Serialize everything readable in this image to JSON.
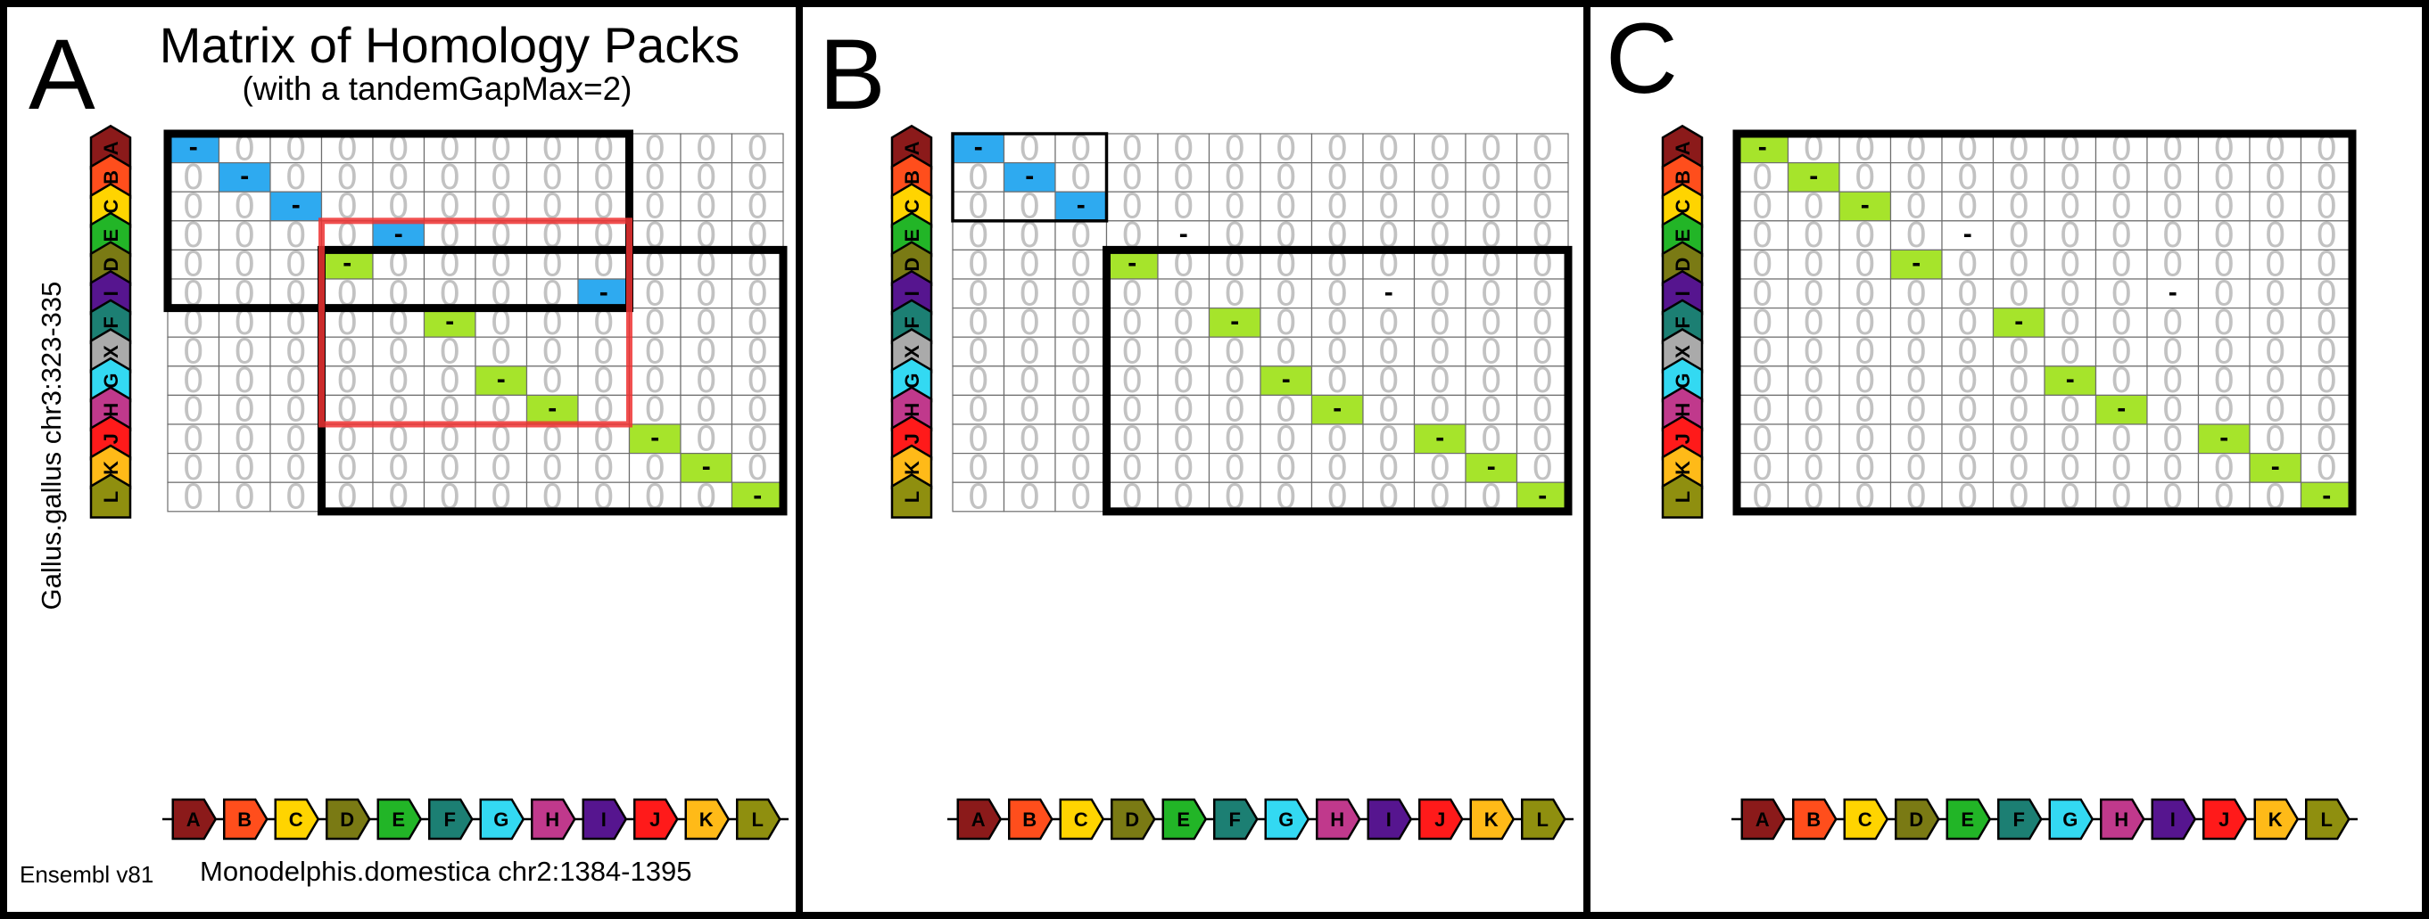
{
  "figure": {
    "title": "Matrix of Homology Packs",
    "subtitle": "(with a tandemGapMax=2)",
    "y_axis_label": "Gallus.gallus chr3:323-335",
    "x_axis_label": "Monodelphis.domestica chr2:1384-1395",
    "source_label": "Ensembl v81"
  },
  "genes": {
    "rows": [
      "A",
      "B",
      "C",
      "E",
      "D",
      "I",
      "F",
      "X",
      "G",
      "H",
      "J",
      "K",
      "L"
    ],
    "cols": [
      "A",
      "B",
      "C",
      "D",
      "E",
      "F",
      "G",
      "H",
      "I",
      "J",
      "K",
      "L"
    ],
    "colors": {
      "A": "#8b1a1a",
      "B": "#ff4e1c",
      "C": "#ffd400",
      "D": "#7a7a14",
      "E": "#22b527",
      "F": "#1c7f73",
      "G": "#33d9f2",
      "H": "#c0398c",
      "I": "#56158f",
      "J": "#ff1a1a",
      "K": "#ffba18",
      "L": "#8f8f0f",
      "X": "#aaaaaa"
    }
  },
  "cell_values": {
    "zero": "0",
    "match": "-"
  },
  "colors": {
    "cell_blue": "#2eaaf0",
    "cell_green": "#a6e42b",
    "highlight_red": "#ee3333",
    "grid_line": "#6d6d6d",
    "frame": "#000000"
  },
  "panels": [
    {
      "letter": "A",
      "matches": [
        {
          "row": 0,
          "col": 0,
          "color": "blue"
        },
        {
          "row": 1,
          "col": 1,
          "color": "blue"
        },
        {
          "row": 2,
          "col": 2,
          "color": "blue"
        },
        {
          "row": 3,
          "col": 4,
          "color": "blue"
        },
        {
          "row": 4,
          "col": 3,
          "color": "green"
        },
        {
          "row": 5,
          "col": 8,
          "color": "blue"
        },
        {
          "row": 6,
          "col": 5,
          "color": "green"
        },
        {
          "row": 8,
          "col": 6,
          "color": "green"
        },
        {
          "row": 9,
          "col": 7,
          "color": "green"
        },
        {
          "row": 10,
          "col": 9,
          "color": "green"
        },
        {
          "row": 11,
          "col": 10,
          "color": "green"
        },
        {
          "row": 12,
          "col": 11,
          "color": "green"
        }
      ],
      "boxes": [
        {
          "r0": 0,
          "c0": 0,
          "r1": 5,
          "c1": 8,
          "style": "black"
        },
        {
          "r0": 4,
          "c0": 3,
          "r1": 12,
          "c1": 11,
          "style": "black"
        },
        {
          "r0": 3,
          "c0": 3,
          "r1": 9,
          "c1": 8,
          "style": "red"
        }
      ]
    },
    {
      "letter": "B",
      "matches": [
        {
          "row": 0,
          "col": 0,
          "color": "blue"
        },
        {
          "row": 1,
          "col": 1,
          "color": "blue"
        },
        {
          "row": 2,
          "col": 2,
          "color": "blue"
        },
        {
          "row": 3,
          "col": 4,
          "color": "none"
        },
        {
          "row": 4,
          "col": 3,
          "color": "green"
        },
        {
          "row": 5,
          "col": 8,
          "color": "none"
        },
        {
          "row": 6,
          "col": 5,
          "color": "green"
        },
        {
          "row": 8,
          "col": 6,
          "color": "green"
        },
        {
          "row": 9,
          "col": 7,
          "color": "green"
        },
        {
          "row": 10,
          "col": 9,
          "color": "green"
        },
        {
          "row": 11,
          "col": 10,
          "color": "green"
        },
        {
          "row": 12,
          "col": 11,
          "color": "green"
        }
      ],
      "boxes": [
        {
          "r0": 0,
          "c0": 0,
          "r1": 2,
          "c1": 2,
          "style": "thin"
        },
        {
          "r0": 4,
          "c0": 3,
          "r1": 12,
          "c1": 11,
          "style": "black"
        }
      ]
    },
    {
      "letter": "C",
      "matches": [
        {
          "row": 0,
          "col": 0,
          "color": "green"
        },
        {
          "row": 1,
          "col": 1,
          "color": "green"
        },
        {
          "row": 2,
          "col": 2,
          "color": "green"
        },
        {
          "row": 3,
          "col": 4,
          "color": "none"
        },
        {
          "row": 4,
          "col": 3,
          "color": "green"
        },
        {
          "row": 5,
          "col": 8,
          "color": "none"
        },
        {
          "row": 6,
          "col": 5,
          "color": "green"
        },
        {
          "row": 8,
          "col": 6,
          "color": "green"
        },
        {
          "row": 9,
          "col": 7,
          "color": "green"
        },
        {
          "row": 10,
          "col": 9,
          "color": "green"
        },
        {
          "row": 11,
          "col": 10,
          "color": "green"
        },
        {
          "row": 12,
          "col": 11,
          "color": "green"
        }
      ],
      "boxes": [
        {
          "r0": 0,
          "c0": 0,
          "r1": 12,
          "c1": 11,
          "style": "black"
        }
      ]
    }
  ]
}
